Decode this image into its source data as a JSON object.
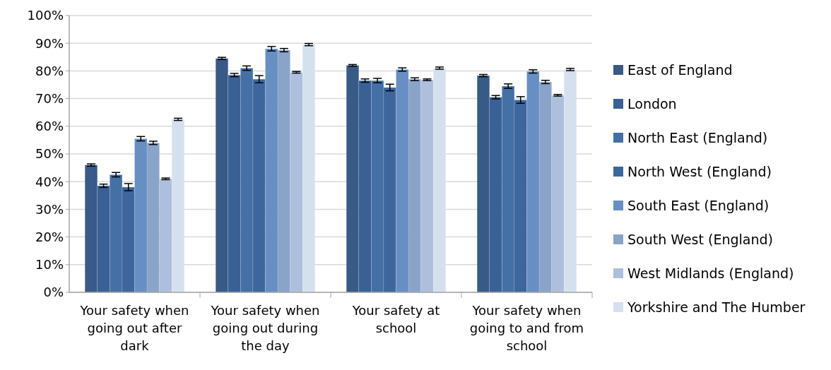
{
  "chart_data": {
    "type": "bar",
    "categories": [
      "Your safety when going out after dark",
      "Your safety when going out during the day",
      "Your safety at school",
      "Your safety when going to and from school"
    ],
    "series": [
      {
        "name": "East of England",
        "color": "#375a87",
        "values": [
          46,
          84.5,
          82,
          78.3
        ],
        "errors": [
          0.4,
          0.4,
          0.3,
          0.4
        ]
      },
      {
        "name": "London",
        "color": "#3a6196",
        "values": [
          38.5,
          78.5,
          76.5,
          70.5
        ],
        "errors": [
          0.6,
          0.6,
          0.6,
          0.6
        ]
      },
      {
        "name": "North East (England)",
        "color": "#4470a5",
        "values": [
          42.5,
          81,
          76.5,
          74.5
        ],
        "errors": [
          0.8,
          0.8,
          0.8,
          0.8
        ]
      },
      {
        "name": "North West (England)",
        "color": "#3d679c",
        "values": [
          38,
          77,
          74,
          69.5
        ],
        "errors": [
          1.3,
          1.3,
          1.2,
          1.2
        ]
      },
      {
        "name": "South East (England)",
        "color": "#678fc4",
        "values": [
          55.5,
          88,
          80.5,
          79.8
        ],
        "errors": [
          0.8,
          0.8,
          0.6,
          0.6
        ]
      },
      {
        "name": "South West (England)",
        "color": "#8aa3c9",
        "values": [
          54,
          87.5,
          77,
          76
        ],
        "errors": [
          0.6,
          0.6,
          0.5,
          0.6
        ]
      },
      {
        "name": "West Midlands (England)",
        "color": "#adbfdc",
        "values": [
          41,
          79.5,
          76.8,
          71.2
        ],
        "errors": [
          0.3,
          0.3,
          0.3,
          0.3
        ]
      },
      {
        "name": "Yorkshire and The Humber",
        "color": "#d5e0ef",
        "values": [
          62.5,
          89.5,
          81,
          80.5
        ],
        "errors": [
          0.4,
          0.4,
          0.4,
          0.4
        ]
      }
    ],
    "ylim": [
      0,
      100
    ],
    "yticks": [
      {
        "value": 0,
        "label": "0%"
      },
      {
        "value": 10,
        "label": "10%"
      },
      {
        "value": 20,
        "label": "20%"
      },
      {
        "value": 30,
        "label": "30%"
      },
      {
        "value": 40,
        "label": "40%"
      },
      {
        "value": 50,
        "label": "50%"
      },
      {
        "value": 60,
        "label": "60%"
      },
      {
        "value": 70,
        "label": "70%"
      },
      {
        "value": 80,
        "label": "80%"
      },
      {
        "value": 90,
        "label": "90%"
      },
      {
        "value": 100,
        "label": "100%"
      }
    ],
    "grid": "y",
    "legend": "right"
  }
}
